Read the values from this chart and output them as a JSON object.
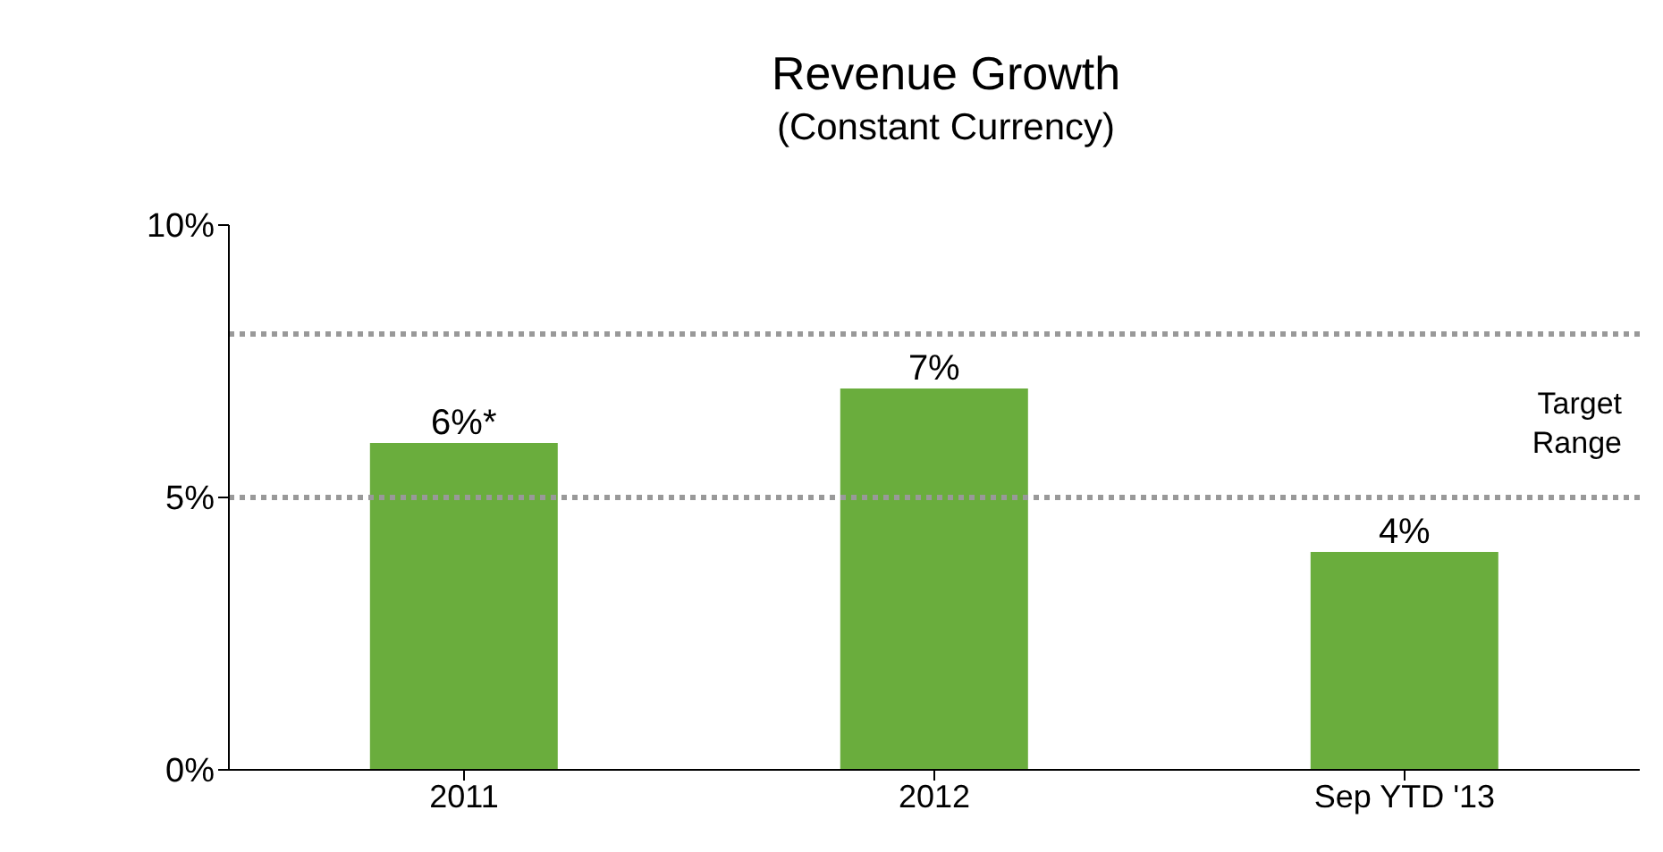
{
  "chart_data": {
    "type": "bar",
    "title": "Revenue Growth",
    "subtitle": "(Constant Currency)",
    "categories": [
      "2011",
      "2012",
      "Sep YTD '13"
    ],
    "values": [
      6,
      7,
      4
    ],
    "color": "#6aad3d",
    "value_labels": [
      "6%*",
      "7%",
      "4%"
    ],
    "ylim": [
      0,
      10
    ],
    "yticks": [
      {
        "value": 0,
        "label": "0%"
      },
      {
        "value": 5,
        "label": "5%"
      },
      {
        "value": 10,
        "label": "10%"
      }
    ],
    "ref_lines": [
      {
        "axis": "y",
        "value": 5,
        "label": "Target Range",
        "color": "#999999",
        "line_style": "dotted"
      },
      {
        "axis": "y",
        "value": 8,
        "label": null,
        "color": "#999999",
        "line_style": "dotted"
      }
    ]
  }
}
